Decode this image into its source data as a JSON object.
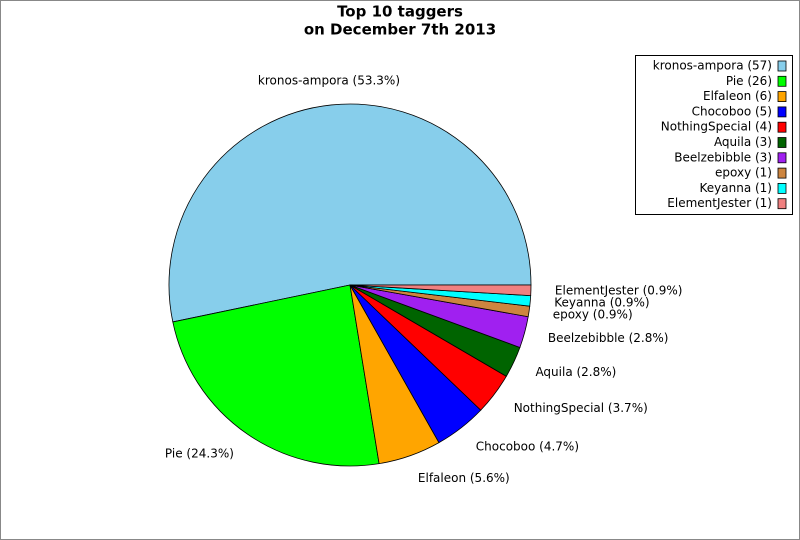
{
  "chart_data": {
    "type": "pie",
    "title": "Top 10 taggers",
    "subtitle": "on December 7th 2013",
    "categories": [
      "kronos-ampora",
      "Pie",
      "Elfaleon",
      "Chocoboo",
      "NothingSpecial",
      "Aquila",
      "Beelzebibble",
      "epoxy",
      "Keyanna",
      "ElementJester"
    ],
    "values": [
      57,
      26,
      6,
      5,
      4,
      3,
      3,
      1,
      1,
      1
    ],
    "legend_labels": [
      "kronos-ampora (57)",
      "Pie (26)",
      "Elfaleon (6)",
      "Chocoboo (5)",
      "NothingSpecial (4)",
      "Aquila (3)",
      "Beelzebibble (3)",
      "epoxy (1)",
      "Keyanna (1)",
      "ElementJester (1)"
    ],
    "slice_labels": [
      "kronos-ampora (53.3%)",
      "Pie (24.3%)",
      "Elfaleon (5.6%)",
      "Chocoboo (4.7%)",
      "NothingSpecial (3.7%)",
      "Aquila (2.8%)",
      "Beelzebibble (2.8%)",
      "epoxy (0.9%)",
      "Keyanna (0.9%)",
      "ElementJester (0.9%)"
    ],
    "colors": [
      "#87ceeb",
      "#00ff00",
      "#ffa500",
      "#0000ff",
      "#ff0000",
      "#006400",
      "#a020f0",
      "#cd853f",
      "#00ffff",
      "#f08080"
    ],
    "legend": "top-right"
  }
}
